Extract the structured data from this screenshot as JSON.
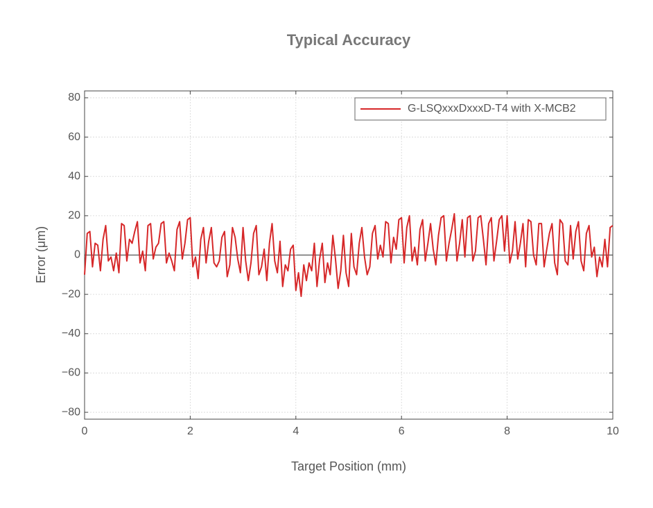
{
  "chart_data": {
    "type": "line",
    "title": "Typical Accuracy",
    "x_label": "Target Position (mm)",
    "y_label": "Error (μm)",
    "x": [
      0,
      0.05,
      0.1,
      0.15,
      0.2,
      0.25,
      0.3,
      0.35,
      0.4,
      0.45,
      0.5,
      0.55,
      0.6,
      0.65,
      0.7,
      0.75,
      0.8,
      0.85,
      0.9,
      0.95,
      1,
      1.05,
      1.1,
      1.15,
      1.2,
      1.25,
      1.3,
      1.35,
      1.4,
      1.45,
      1.5,
      1.55,
      1.6,
      1.65,
      1.7,
      1.75,
      1.8,
      1.85,
      1.9,
      1.95,
      2,
      2.05,
      2.1,
      2.15,
      2.2,
      2.25,
      2.3,
      2.35,
      2.4,
      2.45,
      2.5,
      2.55,
      2.6,
      2.65,
      2.7,
      2.75,
      2.8,
      2.85,
      2.9,
      2.95,
      3,
      3.05,
      3.1,
      3.15,
      3.2,
      3.25,
      3.3,
      3.35,
      3.4,
      3.45,
      3.5,
      3.55,
      3.6,
      3.65,
      3.7,
      3.75,
      3.8,
      3.85,
      3.9,
      3.95,
      4,
      4.05,
      4.1,
      4.15,
      4.2,
      4.25,
      4.3,
      4.35,
      4.4,
      4.45,
      4.5,
      4.55,
      4.6,
      4.65,
      4.7,
      4.75,
      4.8,
      4.85,
      4.9,
      4.95,
      5,
      5.05,
      5.1,
      5.15,
      5.2,
      5.25,
      5.3,
      5.35,
      5.4,
      5.45,
      5.5,
      5.55,
      5.6,
      5.65,
      5.7,
      5.75,
      5.8,
      5.85,
      5.9,
      5.95,
      6,
      6.05,
      6.1,
      6.15,
      6.2,
      6.25,
      6.3,
      6.35,
      6.4,
      6.45,
      6.5,
      6.55,
      6.6,
      6.65,
      6.7,
      6.75,
      6.8,
      6.85,
      6.9,
      6.95,
      7,
      7.05,
      7.1,
      7.15,
      7.2,
      7.25,
      7.3,
      7.35,
      7.4,
      7.45,
      7.5,
      7.55,
      7.6,
      7.65,
      7.7,
      7.75,
      7.8,
      7.85,
      7.9,
      7.95,
      8,
      8.05,
      8.1,
      8.15,
      8.2,
      8.25,
      8.3,
      8.35,
      8.4,
      8.45,
      8.5,
      8.55,
      8.6,
      8.65,
      8.7,
      8.75,
      8.8,
      8.85,
      8.9,
      8.95,
      9,
      9.05,
      9.1,
      9.15,
      9.2,
      9.25,
      9.3,
      9.35,
      9.4,
      9.45,
      9.5,
      9.55,
      9.6,
      9.65,
      9.7,
      9.75,
      9.8,
      9.85,
      9.9,
      9.95,
      10
    ],
    "series": [
      {
        "name": "G-LSQxxxDxxxD-T4 with X-MCB2",
        "color": "#d62728",
        "values": [
          -10,
          11,
          12,
          -6,
          6,
          5,
          -8,
          8,
          15,
          -3,
          -1,
          -8,
          1,
          -9,
          16,
          15,
          -3,
          8,
          6,
          12,
          17,
          -4,
          2,
          -8,
          15,
          16,
          -2,
          4,
          6,
          16,
          17,
          -4,
          1,
          -3,
          -8,
          13,
          17,
          -2,
          6,
          18,
          19,
          -6,
          -1,
          -12,
          8,
          14,
          -4,
          7,
          14,
          -4,
          -6,
          -3,
          9,
          12,
          -11,
          -5,
          14,
          9,
          -2,
          -9,
          14,
          -3,
          -13,
          -4,
          11,
          15,
          -10,
          -6,
          3,
          -13,
          6,
          16,
          -3,
          -9,
          7,
          -16,
          -5,
          -8,
          3,
          5,
          -18,
          -9,
          -21,
          -5,
          -13,
          -4,
          -8,
          6,
          -16,
          -2,
          6,
          -14,
          -4,
          -10,
          10,
          -2,
          -17,
          -8,
          10,
          -9,
          -16,
          11,
          -6,
          -10,
          6,
          14,
          -1,
          -10,
          -6,
          11,
          15,
          -2,
          5,
          -1,
          17,
          16,
          -4,
          9,
          3,
          18,
          19,
          -4,
          14,
          20,
          -3,
          4,
          -5,
          13,
          18,
          -3,
          6,
          16,
          3,
          -5,
          10,
          19,
          20,
          -3,
          6,
          13,
          21,
          -3,
          6,
          18,
          -1,
          19,
          20,
          -3,
          2,
          19,
          20,
          8,
          -5,
          16,
          19,
          -3,
          7,
          18,
          20,
          2,
          20,
          -4,
          2,
          17,
          -2,
          6,
          16,
          -6,
          18,
          17,
          0,
          -5,
          16,
          16,
          -6,
          3,
          11,
          16,
          -4,
          -10,
          18,
          16,
          -3,
          -5,
          15,
          -2,
          12,
          17,
          -3,
          -8,
          11,
          15,
          -1,
          4,
          -11,
          -1,
          -6,
          8,
          -6,
          14,
          15
        ]
      }
    ],
    "xlim": [
      0,
      10
    ],
    "xticks": [
      0,
      2,
      4,
      6,
      8,
      10
    ],
    "ylim": [
      -83.5,
      83.5
    ],
    "yticks": [
      {
        "value": -80,
        "label": "−80"
      },
      {
        "value": -60,
        "label": "−60"
      },
      {
        "value": -40,
        "label": "−40"
      },
      {
        "value": -20,
        "label": "−20"
      },
      0,
      20,
      40,
      60,
      80
    ],
    "grid": true,
    "legend": "upper right"
  }
}
